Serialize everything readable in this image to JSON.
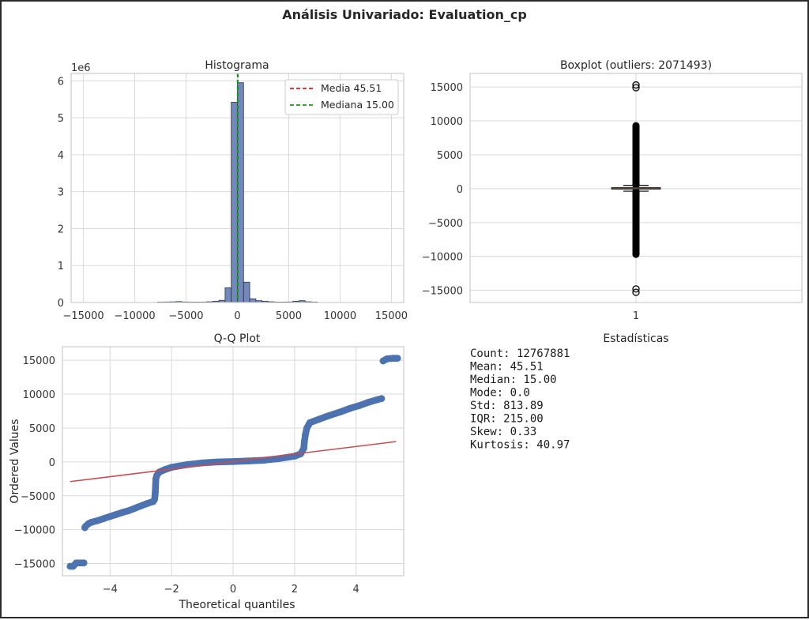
{
  "figure": {
    "suptitle": "Análisis Univariado: Evaluation_cp"
  },
  "chart_data": [
    {
      "type": "bar",
      "subtype": "histogram",
      "title": "Histograma",
      "offset_label": "1e6",
      "xlim": [
        -16200,
        16200
      ],
      "ylim": [
        0,
        6.2
      ],
      "xticks": [
        -15000,
        -10000,
        -5000,
        0,
        5000,
        10000,
        15000
      ],
      "xtick_labels": [
        "−15000",
        "−10000",
        "−5000",
        "0",
        "5000",
        "10000",
        "15000"
      ],
      "yticks": [
        0,
        1,
        2,
        3,
        4,
        5,
        6
      ],
      "ytick_labels": [
        "0",
        "1",
        "2",
        "3",
        "4",
        "5",
        "6"
      ],
      "bin_width": 600,
      "bins": [
        {
          "x0": -7800,
          "value": 0.012
        },
        {
          "x0": -7200,
          "value": 0.015
        },
        {
          "x0": -6600,
          "value": 0.018
        },
        {
          "x0": -6000,
          "value": 0.025
        },
        {
          "x0": -5400,
          "value": 0.015
        },
        {
          "x0": -4800,
          "value": 0.01
        },
        {
          "x0": -4200,
          "value": 0.012
        },
        {
          "x0": -3600,
          "value": 0.01
        },
        {
          "x0": -3000,
          "value": 0.02
        },
        {
          "x0": -2400,
          "value": 0.035
        },
        {
          "x0": -1800,
          "value": 0.06
        },
        {
          "x0": -1200,
          "value": 0.4
        },
        {
          "x0": -600,
          "value": 5.42
        },
        {
          "x0": 0,
          "value": 5.95
        },
        {
          "x0": 600,
          "value": 0.55
        },
        {
          "x0": 1200,
          "value": 0.1
        },
        {
          "x0": 1800,
          "value": 0.05
        },
        {
          "x0": 2400,
          "value": 0.035
        },
        {
          "x0": 3000,
          "value": 0.02
        },
        {
          "x0": 3600,
          "value": 0.012
        },
        {
          "x0": 4200,
          "value": 0.01
        },
        {
          "x0": 4800,
          "value": 0.015
        },
        {
          "x0": 5400,
          "value": 0.035
        },
        {
          "x0": 6000,
          "value": 0.05
        },
        {
          "x0": 6600,
          "value": 0.02
        },
        {
          "x0": 7200,
          "value": 0.01
        }
      ],
      "bar_color": "#7088bb",
      "mean": 45.51,
      "median": 15.0,
      "legend": {
        "placement": "upper right",
        "items": [
          {
            "label": "Media 45.51",
            "color": "#e8181c",
            "style": "dashed"
          },
          {
            "label": "Mediana 15.00",
            "color": "#1a9a1a",
            "style": "dashed"
          }
        ]
      },
      "grid": true
    },
    {
      "type": "boxplot",
      "title": "Boxplot (outliers: 2071493)",
      "ylim": [
        -16800,
        17000
      ],
      "yticks": [
        -15000,
        -10000,
        -5000,
        0,
        5000,
        10000,
        15000
      ],
      "ytick_labels": [
        "−15000",
        "−10000",
        "−5000",
        "0",
        "5000",
        "10000",
        "15000"
      ],
      "xtick_labels": [
        "1"
      ],
      "q1": -55,
      "median": 15,
      "q3": 160,
      "whisker_low": -375,
      "whisker_high": 480,
      "outliers_dense_low": [
        -9700,
        -375
      ],
      "outliers_dense_high": [
        480,
        9300
      ],
      "outliers_extra": [
        15300,
        14900,
        -14800,
        -15300
      ],
      "box_color": "#c0714d",
      "grid": true
    },
    {
      "type": "scatter",
      "title": "Q-Q Plot",
      "xlabel": "Theoretical quantiles",
      "ylabel": "Ordered Values",
      "xlim": [
        -5.55,
        5.55
      ],
      "ylim": [
        -16800,
        17000
      ],
      "xticks": [
        -4,
        -2,
        0,
        2,
        4
      ],
      "xtick_labels": [
        "−4",
        "−2",
        "0",
        "2",
        "4"
      ],
      "yticks": [
        -15000,
        -10000,
        -5000,
        0,
        5000,
        10000,
        15000
      ],
      "ytick_labels": [
        "−15000",
        "−10000",
        "−5000",
        "0",
        "5000",
        "10000",
        "15000"
      ],
      "points": [
        [
          -5.3,
          -15400
        ],
        [
          -5.2,
          -15400
        ],
        [
          -5.1,
          -14900
        ],
        [
          -4.95,
          -14900
        ],
        [
          -4.85,
          -14900
        ],
        [
          -4.82,
          -9700
        ],
        [
          -4.8,
          -9500
        ],
        [
          -4.7,
          -9100
        ],
        [
          -4.6,
          -8900
        ],
        [
          -4.4,
          -8650
        ],
        [
          -4.2,
          -8350
        ],
        [
          -4.0,
          -8050
        ],
        [
          -3.8,
          -7750
        ],
        [
          -3.6,
          -7450
        ],
        [
          -3.4,
          -7200
        ],
        [
          -3.2,
          -6850
        ],
        [
          -3.0,
          -6500
        ],
        [
          -2.8,
          -6150
        ],
        [
          -2.6,
          -5850
        ],
        [
          -2.55,
          -5500
        ],
        [
          -2.53,
          -4500
        ],
        [
          -2.52,
          -3500
        ],
        [
          -2.51,
          -2500
        ],
        [
          -2.48,
          -2000
        ],
        [
          -2.4,
          -1500
        ],
        [
          -2.2,
          -1100
        ],
        [
          -2.0,
          -800
        ],
        [
          -1.5,
          -400
        ],
        [
          -1.0,
          -150
        ],
        [
          -0.5,
          0
        ],
        [
          0.0,
          50
        ],
        [
          0.5,
          150
        ],
        [
          1.0,
          250
        ],
        [
          1.5,
          500
        ],
        [
          2.0,
          850
        ],
        [
          2.2,
          1200
        ],
        [
          2.3,
          2000
        ],
        [
          2.32,
          3000
        ],
        [
          2.35,
          4000
        ],
        [
          2.4,
          5000
        ],
        [
          2.5,
          5800
        ],
        [
          2.8,
          6300
        ],
        [
          3.1,
          6800
        ],
        [
          3.5,
          7400
        ],
        [
          3.8,
          7900
        ],
        [
          4.1,
          8300
        ],
        [
          4.4,
          8800
        ],
        [
          4.7,
          9200
        ],
        [
          4.83,
          9350
        ],
        [
          4.88,
          14900
        ],
        [
          5.0,
          15200
        ],
        [
          5.2,
          15300
        ],
        [
          5.35,
          15300
        ]
      ],
      "fit_line": {
        "x": [
          -5.3,
          5.3
        ],
        "y": [
          -2900,
          3000
        ],
        "color": "#c44e52"
      },
      "point_color": "#4c72b0",
      "grid": true
    }
  ],
  "stats_panel": {
    "title": "Estadísticas",
    "lines": [
      "Count: 12767881",
      "Mean: 45.51",
      "Median: 15.00",
      "Mode: 0.0",
      "Std: 813.89",
      "IQR: 215.00",
      "Skew: 0.33",
      "Kurtosis: 40.97"
    ]
  }
}
